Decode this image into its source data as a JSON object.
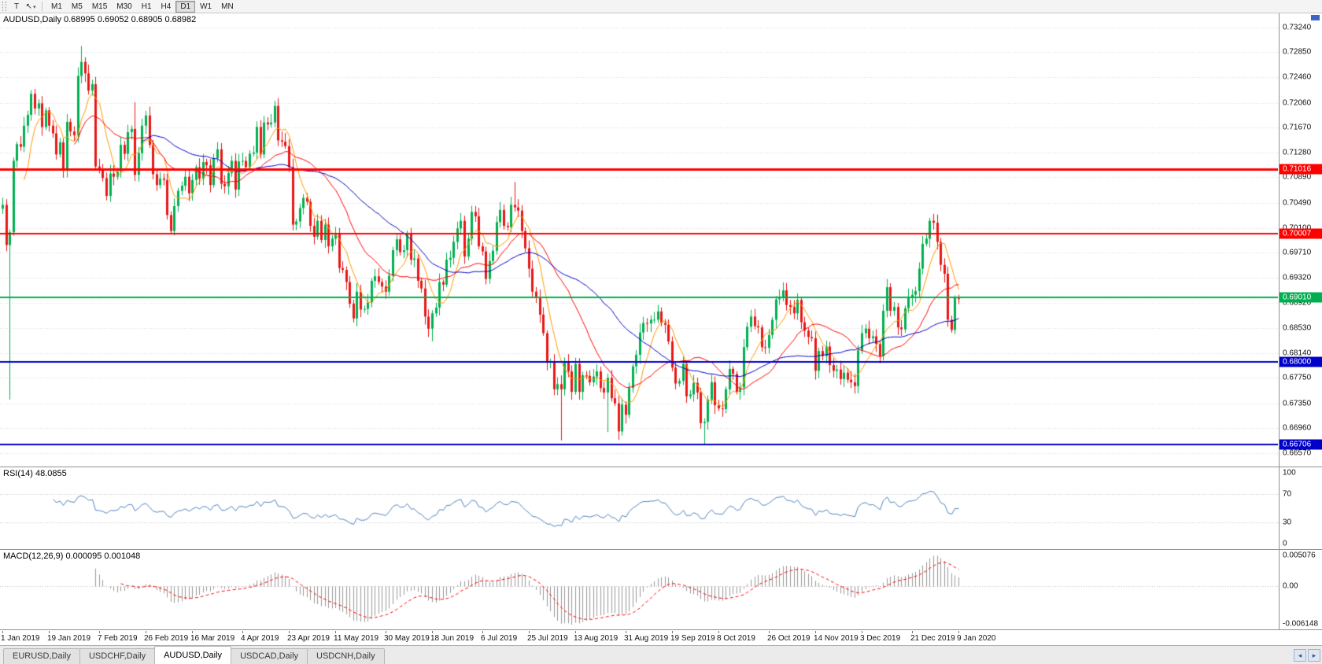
{
  "toolbar": {
    "left_buttons": [
      {
        "name": "template-tool",
        "glyph": "T"
      },
      {
        "name": "cursor-tool",
        "glyph": "↖",
        "caret": "▾"
      }
    ],
    "timeframes": [
      "M1",
      "M5",
      "M15",
      "M30",
      "H1",
      "H4",
      "D1",
      "W1",
      "MN"
    ],
    "active_timeframe": "D1"
  },
  "main_panel": {
    "title": "AUDUSD,Daily 0.68995 0.69052 0.68905 0.68982",
    "axis_ticks": [
      "0.73240",
      "0.72850",
      "0.72460",
      "0.72060",
      "0.71670",
      "0.71280",
      "0.70890",
      "0.70490",
      "0.70100",
      "0.69710",
      "0.69320",
      "0.68920",
      "0.68530",
      "0.68140",
      "0.67750",
      "0.67350",
      "0.66960",
      "0.66570"
    ],
    "hlines": [
      {
        "value": 0.71016,
        "label": "0.71016",
        "color": "#ff0000",
        "width": 3
      },
      {
        "value": 0.70007,
        "label": "0.70007",
        "color": "#ff0000",
        "width": 2
      },
      {
        "value": 0.6901,
        "label": "0.69010",
        "color": "#00b050",
        "width": 2
      },
      {
        "value": 0.68,
        "label": "0.68000",
        "color": "#0000c8",
        "width": 2
      },
      {
        "value": 0.66706,
        "label": "0.66706",
        "color": "#0000c8",
        "width": 2
      }
    ]
  },
  "rsi_panel": {
    "title": "RSI(14) 48.0855",
    "period": 14,
    "current": "48.0855",
    "ticks": [
      {
        "label": "100",
        "value": 100
      },
      {
        "label": "70",
        "value": 70
      },
      {
        "label": "30",
        "value": 30
      },
      {
        "label": "0",
        "value": 0
      }
    ],
    "levels": [
      70,
      30
    ],
    "color": "#4f81bd"
  },
  "macd_panel": {
    "title": "MACD(12,26,9) 0.000095 0.001048",
    "fast": 12,
    "slow": 26,
    "signal": 9,
    "values": [
      "0.000095",
      "0.001048"
    ],
    "axis": {
      "top": "0.005076",
      "zero": "0.00",
      "bottom": "-0.006148"
    },
    "hist_color": "#999999",
    "signal_color": "#ff0000"
  },
  "date_axis": {
    "labels": [
      "1 Jan 2019",
      "19 Jan 2019",
      "7 Feb 2019",
      "26 Feb 2019",
      "16 Mar 2019",
      "4 Apr 2019",
      "23 Apr 2019",
      "11 May 2019",
      "30 May 2019",
      "18 Jun 2019",
      "6 Jul 2019",
      "25 Jul 2019",
      "13 Aug 2019",
      "31 Aug 2019",
      "19 Sep 2019",
      "8 Oct 2019",
      "26 Oct 2019",
      "14 Nov 2019",
      "3 Dec 2019",
      "21 Dec 2019",
      "9 Jan 2020"
    ]
  },
  "tabs": {
    "items": [
      "EURUSD,Daily",
      "USDCHF,Daily",
      "AUDUSD,Daily",
      "USDCAD,Daily",
      "USDCNH,Daily"
    ],
    "active_index": 2,
    "left_arrow_glyph": "◂",
    "right_arrow_glyph": "▸"
  },
  "colors": {
    "bull": "#00b050",
    "bear": "#e81717",
    "grid": "#d9d9d9"
  },
  "chart_data": {
    "type": "candlestick",
    "symbol": "AUDUSD",
    "timeframe": "Daily",
    "price_axis": {
      "top": 0.7346,
      "bottom": 0.6636
    },
    "bar_spacing": 4.55,
    "first_open": 0.704,
    "closes": [
      0.7046,
      0.6983,
      0.7003,
      0.7115,
      0.7141,
      0.7137,
      0.717,
      0.7187,
      0.722,
      0.7197,
      0.7205,
      0.7168,
      0.7194,
      0.717,
      0.7158,
      0.7125,
      0.7144,
      0.71,
      0.7176,
      0.7161,
      0.7155,
      0.7248,
      0.727,
      0.7252,
      0.7225,
      0.7235,
      0.7106,
      0.71,
      0.7088,
      0.706,
      0.7095,
      0.709,
      0.7098,
      0.714,
      0.7126,
      0.716,
      0.7165,
      0.7093,
      0.7127,
      0.717,
      0.7186,
      0.714,
      0.7094,
      0.7077,
      0.7087,
      0.7085,
      0.703,
      0.7005,
      0.7044,
      0.7068,
      0.7076,
      0.709,
      0.7064,
      0.7085,
      0.7105,
      0.7087,
      0.7113,
      0.7108,
      0.7077,
      0.7119,
      0.7133,
      0.7079,
      0.7075,
      0.7096,
      0.7115,
      0.707,
      0.7114,
      0.7115,
      0.7105,
      0.7126,
      0.7128,
      0.7168,
      0.7125,
      0.7175,
      0.7172,
      0.7175,
      0.7201,
      0.7147,
      0.7145,
      0.7138,
      0.7105,
      0.7015,
      0.702,
      0.7041,
      0.7057,
      0.7051,
      0.7013,
      0.6996,
      0.7021,
      0.6991,
      0.7015,
      0.6981,
      0.6993,
      0.7,
      0.6947,
      0.6944,
      0.6925,
      0.6891,
      0.6868,
      0.691,
      0.6882,
      0.6883,
      0.6893,
      0.6927,
      0.6934,
      0.6925,
      0.6918,
      0.691,
      0.6935,
      0.6975,
      0.6992,
      0.6972,
      0.6975,
      0.7001,
      0.696,
      0.6962,
      0.6927,
      0.6915,
      0.6871,
      0.6852,
      0.6876,
      0.6885,
      0.6925,
      0.6921,
      0.696,
      0.6963,
      0.6988,
      0.7009,
      0.7021,
      0.6965,
      0.6993,
      0.7035,
      0.7028,
      0.6981,
      0.6973,
      0.693,
      0.6958,
      0.6974,
      0.7019,
      0.7038,
      0.7013,
      0.7011,
      0.7046,
      0.7042,
      0.7037,
      0.7005,
      0.6978,
      0.6946,
      0.691,
      0.6901,
      0.6874,
      0.6845,
      0.68,
      0.68,
      0.6757,
      0.6765,
      0.6757,
      0.68,
      0.6785,
      0.6753,
      0.6797,
      0.6753,
      0.6779,
      0.6778,
      0.6768,
      0.6777,
      0.6785,
      0.6759,
      0.6752,
      0.6775,
      0.6743,
      0.6735,
      0.6691,
      0.6733,
      0.6717,
      0.6759,
      0.6793,
      0.6811,
      0.6846,
      0.6861,
      0.686,
      0.6866,
      0.6866,
      0.6879,
      0.6861,
      0.6858,
      0.6832,
      0.6791,
      0.6766,
      0.677,
      0.6797,
      0.6746,
      0.6749,
      0.6767,
      0.6752,
      0.6704,
      0.6706,
      0.6741,
      0.6768,
      0.6732,
      0.6727,
      0.6726,
      0.6757,
      0.6789,
      0.6781,
      0.6753,
      0.676,
      0.6823,
      0.6855,
      0.6871,
      0.6856,
      0.6854,
      0.6823,
      0.6822,
      0.6842,
      0.6866,
      0.6898,
      0.6901,
      0.6912,
      0.6889,
      0.6886,
      0.6876,
      0.6897,
      0.6862,
      0.6849,
      0.6839,
      0.6837,
      0.6786,
      0.6817,
      0.6809,
      0.6824,
      0.6795,
      0.6786,
      0.6788,
      0.6773,
      0.6783,
      0.6772,
      0.6768,
      0.6762,
      0.6818,
      0.6845,
      0.6852,
      0.6837,
      0.684,
      0.6828,
      0.6809,
      0.688,
      0.6917,
      0.688,
      0.6886,
      0.6854,
      0.6851,
      0.6884,
      0.6901,
      0.6905,
      0.6911,
      0.6946,
      0.6985,
      0.6993,
      0.7021,
      0.7018,
      0.6988,
      0.6952,
      0.6938,
      0.6866,
      0.685,
      0.69,
      0.6898
    ],
    "special_bars": {
      "2": {
        "low": 0.6741
      },
      "22": {
        "high": 0.7295
      },
      "37": {
        "high": 0.7207
      },
      "76": {
        "high": 0.7206
      },
      "98": {
        "low": 0.6865
      },
      "120": {
        "low": 0.6832
      },
      "143": {
        "high": 0.7082
      },
      "156": {
        "low": 0.6677
      },
      "169": {
        "low": 0.669
      },
      "196": {
        "low": 0.667
      },
      "260": {
        "high": 0.7032
      }
    },
    "last_bar": {
      "open": 0.68995,
      "high": 0.69052,
      "low": 0.68905,
      "close": 0.68982
    },
    "moving_averages": [
      {
        "period": 7,
        "color": "#ff9900"
      },
      {
        "period": 21,
        "color": "#ff0000"
      },
      {
        "period": 40,
        "color": "#0000c8"
      }
    ],
    "hlines": [
      0.71016,
      0.70007,
      0.6901,
      0.68,
      0.66706
    ],
    "rsi": {
      "period": 14,
      "last": 48.0855
    },
    "macd": {
      "fast": 12,
      "slow": 26,
      "signal": 9,
      "last_main": 9.5e-05,
      "last_signal": 0.001048
    }
  }
}
